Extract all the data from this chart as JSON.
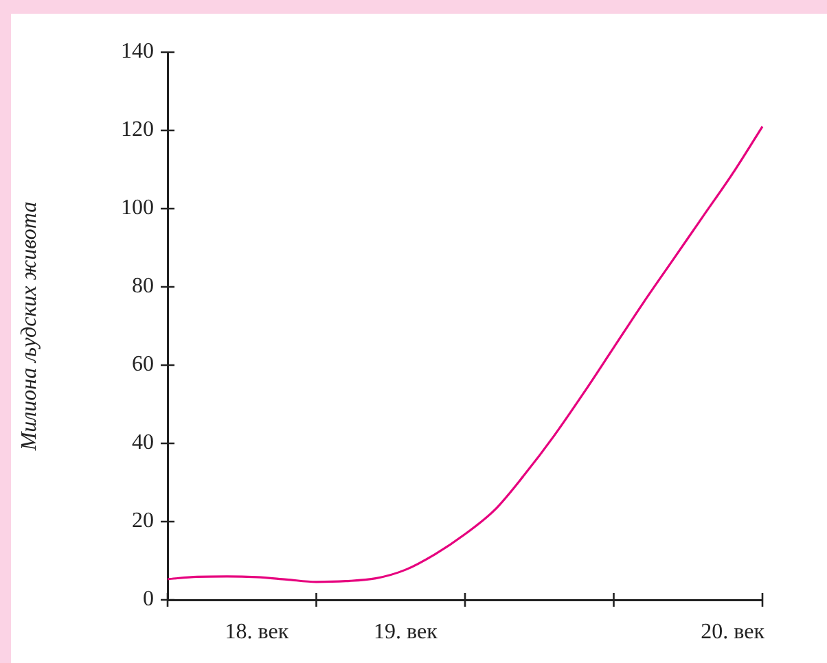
{
  "chart_data": {
    "type": "line",
    "ylabel": "Милиона људских живота",
    "categories": [
      null,
      null,
      null,
      "18. век",
      null,
      null,
      null,
      null,
      "19. век",
      null,
      null,
      null,
      null,
      null,
      null,
      null,
      null,
      null,
      null,
      "20. век",
      null
    ],
    "series": [
      {
        "color": "#e6007e",
        "values": [
          5.3,
          5.9,
          6,
          5.8,
          5.2,
          4.6,
          4.8,
          5.5,
          7.7,
          11.7,
          16.8,
          23,
          32,
          42,
          53,
          64.5,
          76,
          87,
          98,
          109,
          121
        ]
      }
    ],
    "ylim": [
      0,
      140
    ],
    "yticks": [
      0,
      20,
      40,
      60,
      80,
      100,
      120,
      140
    ],
    "marker": "none",
    "line_style": "solid",
    "legend": false
  }
}
